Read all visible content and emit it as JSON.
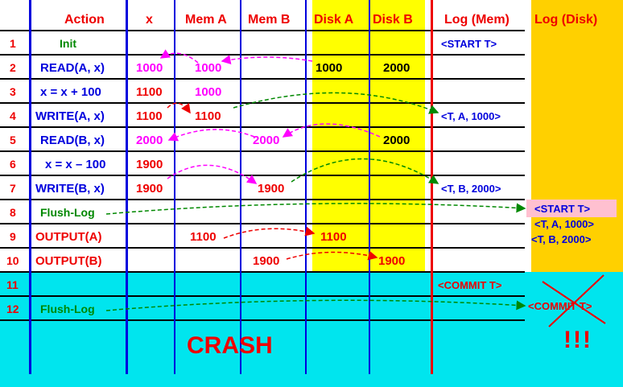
{
  "headers": {
    "action": "Action",
    "x": "x",
    "mem_a": "Mem A",
    "mem_b": "Mem B",
    "disk_a": "Disk A",
    "disk_b": "Disk B",
    "log_mem": "Log (Mem)",
    "log_disk": "Log (Disk)"
  },
  "rows": [
    {
      "num": "1",
      "action": "Init",
      "x": "",
      "mem_a": "",
      "mem_b": "",
      "disk_a": "",
      "disk_b": "",
      "log_mem": "<START T>"
    },
    {
      "num": "2",
      "action": "READ(A, x)",
      "x": "1000",
      "mem_a": "1000",
      "mem_b": "",
      "disk_a": "1000",
      "disk_b": "2000",
      "log_mem": ""
    },
    {
      "num": "3",
      "action": "x = x + 100",
      "x": "1100",
      "mem_a": "1000",
      "mem_b": "",
      "disk_a": "",
      "disk_b": "",
      "log_mem": ""
    },
    {
      "num": "4",
      "action": "WRITE(A, x)",
      "x": "1100",
      "mem_a": "1100",
      "mem_b": "",
      "disk_a": "",
      "disk_b": "",
      "log_mem": "<T, A, 1000>"
    },
    {
      "num": "5",
      "action": "READ(B, x)",
      "x": "2000",
      "mem_a": "",
      "mem_b": "2000",
      "disk_a": "",
      "disk_b": "2000",
      "log_mem": ""
    },
    {
      "num": "6",
      "action": "x = x – 100",
      "x": "1900",
      "mem_a": "",
      "mem_b": "",
      "disk_a": "",
      "disk_b": "",
      "log_mem": ""
    },
    {
      "num": "7",
      "action": "WRITE(B, x)",
      "x": "1900",
      "mem_a": "",
      "mem_b": "1900",
      "disk_a": "",
      "disk_b": "",
      "log_mem": "<T, B, 2000>"
    },
    {
      "num": "8",
      "action": "Flush-Log",
      "x": "",
      "mem_a": "",
      "mem_b": "",
      "disk_a": "",
      "disk_b": "",
      "log_mem": ""
    },
    {
      "num": "9",
      "action": "OUTPUT(A)",
      "x": "",
      "mem_a": "1100",
      "mem_b": "",
      "disk_a": "1100",
      "disk_b": "",
      "log_mem": ""
    },
    {
      "num": "10",
      "action": "OUTPUT(B)",
      "x": "",
      "mem_a": "",
      "mem_b": "1900",
      "disk_a": "",
      "disk_b": "1900",
      "log_mem": ""
    },
    {
      "num": "11",
      "action": "",
      "x": "",
      "mem_a": "",
      "mem_b": "",
      "disk_a": "",
      "disk_b": "",
      "log_mem": "<COMMIT T>"
    },
    {
      "num": "12",
      "action": "Flush-Log",
      "x": "",
      "mem_a": "",
      "mem_b": "",
      "disk_a": "",
      "disk_b": "",
      "log_mem": ""
    }
  ],
  "log_disk": {
    "start": "<START T>",
    "rec_a": "<T, A, 1000>",
    "rec_b": "<T, B, 2000>",
    "commit": "<COMMIT T>"
  },
  "crash_label": "CRASH",
  "exclamation": "!!!",
  "colors": {
    "disk_yellow": "#ffff00",
    "log_disk_orange": "#ffd000",
    "crash_cyan": "#00e5ee",
    "grid_blue": "#0000dd",
    "log_red": "#ee0000",
    "magenta": "#ff00ff",
    "green": "#008800"
  }
}
